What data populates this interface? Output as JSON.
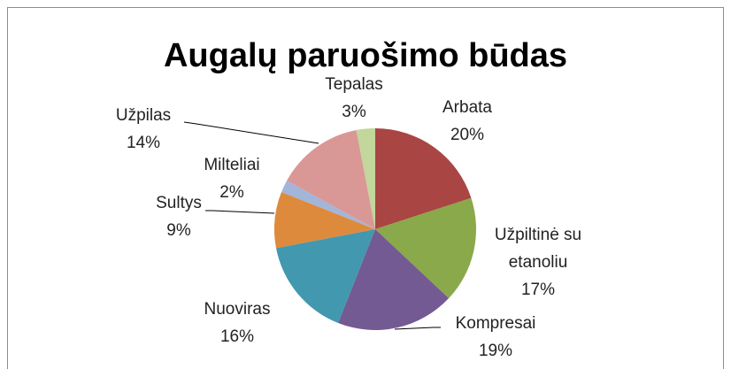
{
  "chart_data": {
    "type": "pie",
    "title": "Augalų paruošimo būdas",
    "categories": [
      "Arbata",
      "Užpiltinė su etanoliu",
      "Kompresai",
      "Nuoviras",
      "Sultys",
      "Milteliai",
      "Užpilas",
      "Tepalas"
    ],
    "values": [
      20,
      17,
      19,
      16,
      9,
      2,
      14,
      3
    ],
    "value_labels": [
      "20%",
      "17%",
      "19%",
      "16%",
      "9%",
      "2%",
      "14%",
      "3%"
    ],
    "colors": [
      "#a94543",
      "#8aa94a",
      "#735a93",
      "#4298ae",
      "#de8a3d",
      "#a3b5d9",
      "#d99896",
      "#c3d69b"
    ]
  }
}
